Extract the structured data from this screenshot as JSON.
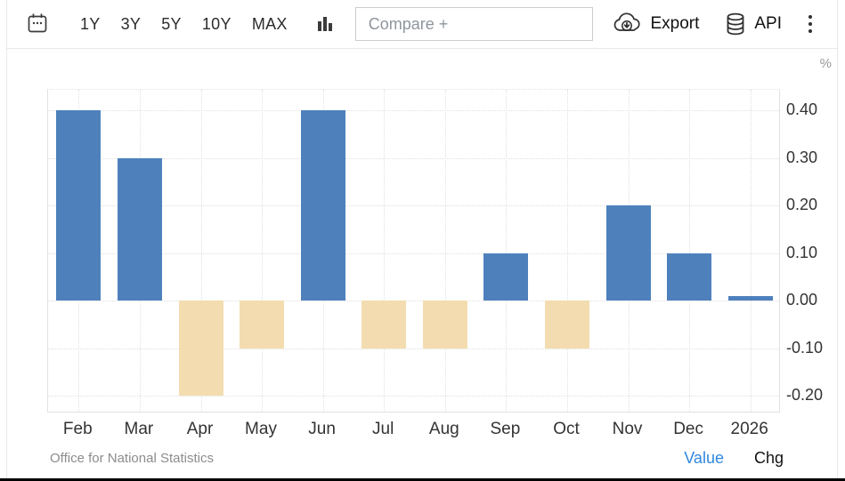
{
  "toolbar": {
    "ranges": [
      "1Y",
      "3Y",
      "5Y",
      "10Y",
      "MAX"
    ],
    "compare_placeholder": "Compare +",
    "export_label": "Export",
    "api_label": "API"
  },
  "chart_data": {
    "type": "bar",
    "title": "",
    "xlabel": "",
    "ylabel": "%",
    "unit_label": "%",
    "categories": [
      "Feb",
      "Mar",
      "Apr",
      "May",
      "Jun",
      "Jul",
      "Aug",
      "Sep",
      "Oct",
      "Nov",
      "Dec",
      "2026"
    ],
    "values": [
      0.4,
      0.3,
      -0.2,
      -0.1,
      0.4,
      -0.1,
      -0.1,
      0.1,
      -0.1,
      0.2,
      0.1,
      0.01
    ],
    "y_tick_labels": [
      "0.40",
      "0.30",
      "0.20",
      "0.10",
      "0.00",
      "-0.10",
      "-0.20"
    ],
    "y_tick_values": [
      0.4,
      0.3,
      0.2,
      0.1,
      0.0,
      -0.1,
      -0.2
    ],
    "ylim": [
      -0.237,
      0.443
    ],
    "grid": "dotted",
    "legend": "none",
    "colors": {
      "positive": "#4e81bc",
      "negative": "#f3ddb0"
    }
  },
  "footer": {
    "source": "Office for National Statistics",
    "value_label": "Value",
    "chg_label": "Chg"
  }
}
